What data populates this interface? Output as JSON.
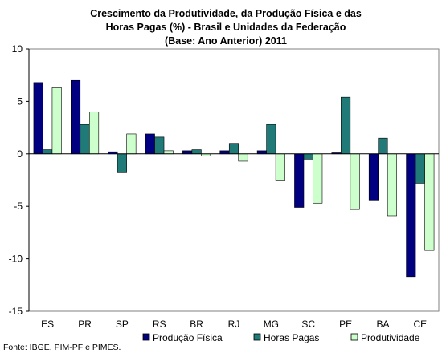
{
  "chart_data": {
    "type": "bar",
    "title": [
      "Crescimento da Produtividade, da Produção Física e das",
      "Horas Pagas (%) - Brasil e Unidades da Federação",
      "(Base: Ano Anterior) 2011"
    ],
    "categories": [
      "ES",
      "PR",
      "SP",
      "RS",
      "BR",
      "RJ",
      "MG",
      "SC",
      "PE",
      "BA",
      "CE"
    ],
    "series": [
      {
        "name": "Produção Física",
        "color": "#000080",
        "values": [
          6.8,
          7.0,
          0.2,
          1.9,
          0.3,
          0.3,
          0.3,
          -5.1,
          0.1,
          -4.4,
          -11.7
        ]
      },
      {
        "name": "Horas Pagas",
        "color": "#1f7a78",
        "values": [
          0.4,
          2.8,
          -1.8,
          1.6,
          0.4,
          1.0,
          2.8,
          -0.5,
          5.4,
          1.5,
          -2.8
        ]
      },
      {
        "name": "Produtividade",
        "color": "#ccffcc",
        "values": [
          6.3,
          4.0,
          1.9,
          0.3,
          -0.2,
          -0.7,
          -2.5,
          -4.7,
          -5.3,
          -5.9,
          -9.2
        ]
      }
    ],
    "ylim": [
      -15,
      10
    ],
    "yticks": [
      -15,
      -10,
      -5,
      0,
      5,
      10
    ],
    "xlabel": "",
    "ylabel": "",
    "legend": "bottom",
    "grid": false
  },
  "source": "Fonte: IBGE, PIM-PF e PIMES."
}
